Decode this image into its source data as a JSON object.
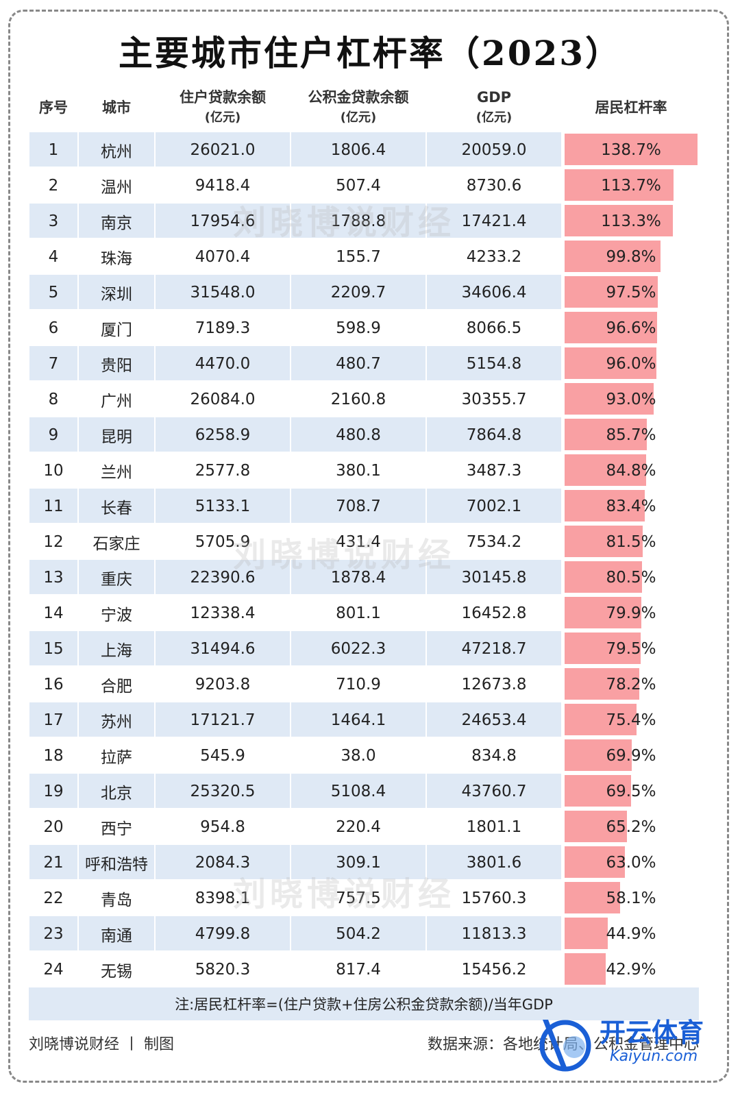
{
  "title": "主要城市住户杠杆率（2023）",
  "columns": {
    "rank": "序号",
    "city": "城市",
    "loan": "住户贷款余额",
    "loan_unit": "(亿元)",
    "fund": "公积金贷款余额",
    "fund_unit": "(亿元)",
    "gdp": "GDP",
    "gdp_unit": "(亿元)",
    "leverage": "居民杠杆率"
  },
  "chart_data": {
    "type": "table",
    "title": "主要城市住户杠杆率（2023）",
    "columns": [
      "序号",
      "城市",
      "住户贷款余额(亿元)",
      "公积金贷款余额(亿元)",
      "GDP(亿元)",
      "居民杠杆率"
    ],
    "rows": [
      {
        "rank": "1",
        "city": "杭州",
        "loan": "26021.0",
        "fund": "1806.4",
        "gdp": "20059.0",
        "leverage": "138.7%",
        "value": 138.7
      },
      {
        "rank": "2",
        "city": "温州",
        "loan": "9418.4",
        "fund": "507.4",
        "gdp": "8730.6",
        "leverage": "113.7%",
        "value": 113.7
      },
      {
        "rank": "3",
        "city": "南京",
        "loan": "17954.6",
        "fund": "1788.8",
        "gdp": "17421.4",
        "leverage": "113.3%",
        "value": 113.3
      },
      {
        "rank": "4",
        "city": "珠海",
        "loan": "4070.4",
        "fund": "155.7",
        "gdp": "4233.2",
        "leverage": "99.8%",
        "value": 99.8
      },
      {
        "rank": "5",
        "city": "深圳",
        "loan": "31548.0",
        "fund": "2209.7",
        "gdp": "34606.4",
        "leverage": "97.5%",
        "value": 97.5
      },
      {
        "rank": "6",
        "city": "厦门",
        "loan": "7189.3",
        "fund": "598.9",
        "gdp": "8066.5",
        "leverage": "96.6%",
        "value": 96.6
      },
      {
        "rank": "7",
        "city": "贵阳",
        "loan": "4470.0",
        "fund": "480.7",
        "gdp": "5154.8",
        "leverage": "96.0%",
        "value": 96.0
      },
      {
        "rank": "8",
        "city": "广州",
        "loan": "26084.0",
        "fund": "2160.8",
        "gdp": "30355.7",
        "leverage": "93.0%",
        "value": 93.0
      },
      {
        "rank": "9",
        "city": "昆明",
        "loan": "6258.9",
        "fund": "480.8",
        "gdp": "7864.8",
        "leverage": "85.7%",
        "value": 85.7
      },
      {
        "rank": "10",
        "city": "兰州",
        "loan": "2577.8",
        "fund": "380.1",
        "gdp": "3487.3",
        "leverage": "84.8%",
        "value": 84.8
      },
      {
        "rank": "11",
        "city": "长春",
        "loan": "5133.1",
        "fund": "708.7",
        "gdp": "7002.1",
        "leverage": "83.4%",
        "value": 83.4
      },
      {
        "rank": "12",
        "city": "石家庄",
        "loan": "5705.9",
        "fund": "431.4",
        "gdp": "7534.2",
        "leverage": "81.5%",
        "value": 81.5
      },
      {
        "rank": "13",
        "city": "重庆",
        "loan": "22390.6",
        "fund": "1878.4",
        "gdp": "30145.8",
        "leverage": "80.5%",
        "value": 80.5
      },
      {
        "rank": "14",
        "city": "宁波",
        "loan": "12338.4",
        "fund": "801.1",
        "gdp": "16452.8",
        "leverage": "79.9%",
        "value": 79.9
      },
      {
        "rank": "15",
        "city": "上海",
        "loan": "31494.6",
        "fund": "6022.3",
        "gdp": "47218.7",
        "leverage": "79.5%",
        "value": 79.5
      },
      {
        "rank": "16",
        "city": "合肥",
        "loan": "9203.8",
        "fund": "710.9",
        "gdp": "12673.8",
        "leverage": "78.2%",
        "value": 78.2
      },
      {
        "rank": "17",
        "city": "苏州",
        "loan": "17121.7",
        "fund": "1464.1",
        "gdp": "24653.4",
        "leverage": "75.4%",
        "value": 75.4
      },
      {
        "rank": "18",
        "city": "拉萨",
        "loan": "545.9",
        "fund": "38.0",
        "gdp": "834.8",
        "leverage": "69.9%",
        "value": 69.9
      },
      {
        "rank": "19",
        "city": "北京",
        "loan": "25320.5",
        "fund": "5108.4",
        "gdp": "43760.7",
        "leverage": "69.5%",
        "value": 69.5
      },
      {
        "rank": "20",
        "city": "西宁",
        "loan": "954.8",
        "fund": "220.4",
        "gdp": "1801.1",
        "leverage": "65.2%",
        "value": 65.2
      },
      {
        "rank": "21",
        "city": "呼和浩特",
        "loan": "2084.3",
        "fund": "309.1",
        "gdp": "3801.6",
        "leverage": "63.0%",
        "value": 63.0
      },
      {
        "rank": "22",
        "city": "青岛",
        "loan": "8398.1",
        "fund": "757.5",
        "gdp": "15760.3",
        "leverage": "58.1%",
        "value": 58.1
      },
      {
        "rank": "23",
        "city": "南通",
        "loan": "4799.8",
        "fund": "504.2",
        "gdp": "11813.3",
        "leverage": "44.9%",
        "value": 44.9
      },
      {
        "rank": "24",
        "city": "无锡",
        "loan": "5820.3",
        "fund": "817.4",
        "gdp": "15456.2",
        "leverage": "42.9%",
        "value": 42.9
      }
    ],
    "bar_max": 138.7,
    "bar_color": "#f9a0a3",
    "shade_color": "#dfe9f5"
  },
  "note": "注:居民杠杆率=(住户贷款+住房公积金贷款余额)/当年GDP",
  "footer": {
    "author": "刘晓博说财经 丨 制图",
    "source": "数据来源：各地统计局、公积金管理中心"
  },
  "watermark": "刘晓博说财经",
  "logo": {
    "text": "开云体育",
    "sub": "Kaiyun.com",
    "color": "#1a5fd6"
  }
}
